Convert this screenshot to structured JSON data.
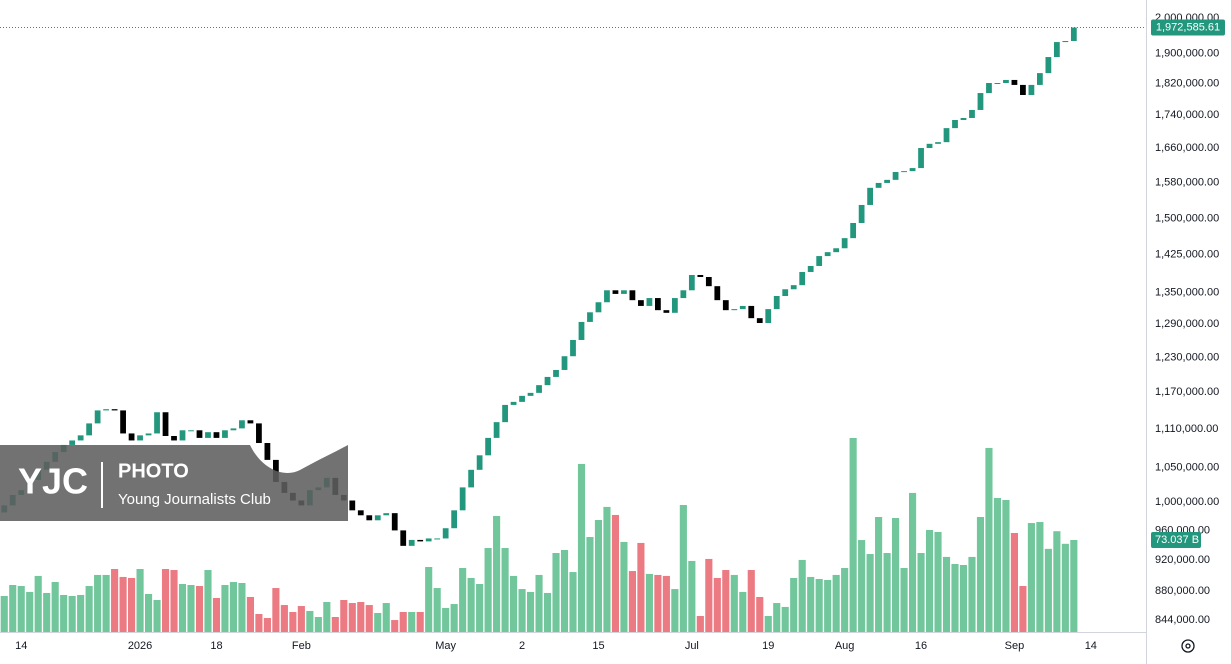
{
  "chart_data": {
    "type": "candlestick",
    "log_scale": true,
    "grid": false,
    "up_color": "#22977d",
    "down_color": "#000000",
    "volume_up_color": "#72c69c",
    "volume_down_color": "#eb7a82",
    "ylim": [
      830000,
      2052000
    ],
    "yticks": [
      {
        "value": 2000000,
        "label": "2,000,000.00"
      },
      {
        "value": 1900000,
        "label": "1,900,000.00"
      },
      {
        "value": 1820000,
        "label": "1,820,000.00"
      },
      {
        "value": 1740000,
        "label": "1,740,000.00"
      },
      {
        "value": 1660000,
        "label": "1,660,000.00"
      },
      {
        "value": 1580000,
        "label": "1,580,000.00"
      },
      {
        "value": 1500000,
        "label": "1,500,000.00"
      },
      {
        "value": 1425000,
        "label": "1,425,000.00"
      },
      {
        "value": 1350000,
        "label": "1,350,000.00"
      },
      {
        "value": 1290000,
        "label": "1,290,000.00"
      },
      {
        "value": 1230000,
        "label": "1,230,000.00"
      },
      {
        "value": 1170000,
        "label": "1,170,000.00"
      },
      {
        "value": 1110000,
        "label": "1,110,000.00"
      },
      {
        "value": 1050000,
        "label": "1,050,000.00"
      },
      {
        "value": 1000000,
        "label": "1,000,000.00"
      },
      {
        "value": 960000,
        "label": "960,000.00"
      },
      {
        "value": 920000,
        "label": "920,000.00"
      },
      {
        "value": 880000,
        "label": "880,000.00"
      },
      {
        "value": 844000,
        "label": "844,000.00"
      }
    ],
    "price_label": "1,972,585.61",
    "volume_label": "73.037 B",
    "watermark": {
      "logo": "YJC",
      "title": "PHOTO",
      "subtitle": "Young Journalists Club"
    },
    "categories": [
      null,
      null,
      "14",
      null,
      null,
      null,
      null,
      null,
      null,
      null,
      null,
      null,
      null,
      null,
      null,
      null,
      "2026",
      null,
      null,
      null,
      null,
      null,
      null,
      null,
      null,
      "18",
      null,
      null,
      null,
      null,
      null,
      null,
      null,
      null,
      null,
      "Feb",
      null,
      null,
      null,
      null,
      null,
      null,
      null,
      null,
      null,
      null,
      null,
      null,
      null,
      null,
      null,
      null,
      "May",
      null,
      null,
      null,
      null,
      null,
      null,
      null,
      null,
      "2",
      null,
      null,
      null,
      null,
      null,
      null,
      null,
      null,
      "15",
      null,
      null,
      null,
      null,
      null,
      null,
      null,
      null,
      null,
      null,
      "Jul",
      null,
      null,
      null,
      null,
      null,
      null,
      null,
      null,
      "19",
      null,
      null,
      null,
      null,
      null,
      null,
      null,
      null,
      "Aug",
      null,
      null,
      null,
      null,
      null,
      null,
      null,
      null,
      "16",
      null,
      null,
      null,
      null,
      null,
      null,
      null,
      null,
      null,
      null,
      "Sep",
      null,
      null,
      null,
      null,
      null,
      null,
      null,
      null,
      "14",
      null,
      null,
      null,
      null,
      null,
      null
    ],
    "open": [
      985000,
      995000,
      1010000,
      1017000,
      1032000,
      1047000,
      1059000,
      1074000,
      1085000,
      1092000,
      1100000,
      1119000,
      1140000,
      1142000,
      1140000,
      1103000,
      1092000,
      1100000,
      1103000,
      1137000,
      1099000,
      1092000,
      1108000,
      1108000,
      1096000,
      1105000,
      1096000,
      1108000,
      1111000,
      1124000,
      1119000,
      1088000,
      1062000,
      1029000,
      1013000,
      1002000,
      995000,
      1017000,
      1021000,
      1035000,
      1010000,
      1002000,
      988000,
      981000,
      974000,
      981000,
      984000,
      960000,
      939000,
      947000,
      945000,
      949000,
      949000,
      963000,
      988000,
      1021000,
      1047000,
      1069000,
      1096000,
      1121000,
      1149000,
      1154000,
      1164000,
      1169000,
      1182000,
      1196000,
      1208000,
      1232000,
      1261000,
      1294000,
      1312000,
      1331000,
      1354000,
      1347000,
      1354000,
      1335000,
      1324000,
      1339000,
      1316000,
      1311000,
      1339000,
      1354000,
      1384000,
      1380000,
      1362000,
      1335000,
      1316000,
      1318000,
      1324000,
      1301000,
      1292000,
      1318000,
      1343000,
      1356000,
      1364000,
      1390000,
      1402000,
      1422000,
      1430000,
      1438000,
      1459000,
      1491000,
      1530000,
      1568000,
      1579000,
      1586000,
      1604000,
      1606000,
      1613000,
      1660000,
      1670000,
      1674000,
      1708000,
      1728000,
      1733000,
      1753000,
      1796000,
      1822000,
      1822000,
      1830000,
      1817000,
      1791000,
      1817000,
      1848000,
      1891000,
      1932000,
      1935000,
      null,
      null,
      null,
      null,
      null,
      null,
      null,
      null
    ],
    "close": [
      995000,
      1010000,
      1017000,
      1032000,
      1047000,
      1059000,
      1074000,
      1085000,
      1092000,
      1100000,
      1119000,
      1140000,
      1142000,
      1140000,
      1103000,
      1092000,
      1100000,
      1103000,
      1137000,
      1099000,
      1092000,
      1108000,
      1108000,
      1096000,
      1105000,
      1096000,
      1108000,
      1111000,
      1124000,
      1119000,
      1088000,
      1062000,
      1029000,
      1013000,
      1002000,
      995000,
      1017000,
      1021000,
      1035000,
      1010000,
      1002000,
      988000,
      981000,
      974000,
      981000,
      984000,
      960000,
      939000,
      947000,
      945000,
      949000,
      949000,
      963000,
      988000,
      1021000,
      1047000,
      1069000,
      1096000,
      1121000,
      1149000,
      1154000,
      1164000,
      1169000,
      1182000,
      1196000,
      1208000,
      1232000,
      1261000,
      1294000,
      1312000,
      1331000,
      1354000,
      1347000,
      1354000,
      1335000,
      1324000,
      1339000,
      1316000,
      1311000,
      1339000,
      1354000,
      1384000,
      1380000,
      1362000,
      1335000,
      1316000,
      1318000,
      1324000,
      1301000,
      1292000,
      1318000,
      1343000,
      1356000,
      1364000,
      1390000,
      1402000,
      1422000,
      1430000,
      1438000,
      1459000,
      1491000,
      1530000,
      1568000,
      1579000,
      1586000,
      1604000,
      1606000,
      1613000,
      1660000,
      1670000,
      1674000,
      1708000,
      1728000,
      1733000,
      1753000,
      1796000,
      1822000,
      1822000,
      1830000,
      1817000,
      1791000,
      1817000,
      1848000,
      1891000,
      1932000,
      1935000,
      1972585.61,
      null,
      null,
      null,
      null,
      null,
      null,
      null,
      null
    ],
    "volume": [
      28.6,
      37.3,
      36.5,
      31.8,
      44.5,
      31.0,
      39.7,
      29.4,
      28.6,
      29.4,
      36.5,
      45.3,
      45.3,
      50.0,
      43.7,
      42.9,
      50.0,
      30.2,
      25.4,
      50.0,
      49.2,
      38.1,
      37.3,
      36.5,
      49.2,
      27.0,
      37.3,
      39.7,
      38.9,
      27.8,
      14.3,
      11.1,
      34.9,
      21.4,
      15.9,
      20.6,
      16.7,
      11.9,
      23.8,
      11.9,
      25.4,
      23.0,
      23.8,
      21.4,
      15.1,
      23.0,
      9.5,
      15.9,
      15.9,
      15.9,
      51.6,
      34.9,
      19.1,
      22.2,
      50.8,
      42.9,
      38.1,
      66.7,
      92.1,
      66.7,
      44.5,
      34.1,
      31.8,
      45.3,
      31.0,
      62.7,
      65.1,
      47.6,
      133.4,
      75.4,
      88.9,
      99.3,
      92.9,
      71.5,
      48.4,
      70.7,
      46.1,
      45.3,
      44.5,
      34.1,
      100.8,
      56.4,
      12.7,
      58.0,
      42.9,
      49.2,
      45.3,
      31.8,
      49.2,
      27.8,
      12.7,
      23.0,
      19.9,
      42.9,
      57.2,
      43.7,
      42.1,
      41.3,
      45.3,
      50.8,
      154.0,
      73.0,
      61.9,
      91.3,
      62.7,
      90.5,
      50.8,
      110.4,
      62.7,
      81.0,
      79.4,
      59.6,
      54.0,
      53.2,
      59.6,
      91.3,
      146.1,
      106.4,
      104.8,
      78.6,
      36.5,
      86.5,
      87.3,
      66.0,
      80.0,
      70.0,
      73.037,
      null,
      null,
      null,
      null,
      null,
      null,
      null,
      null
    ]
  }
}
